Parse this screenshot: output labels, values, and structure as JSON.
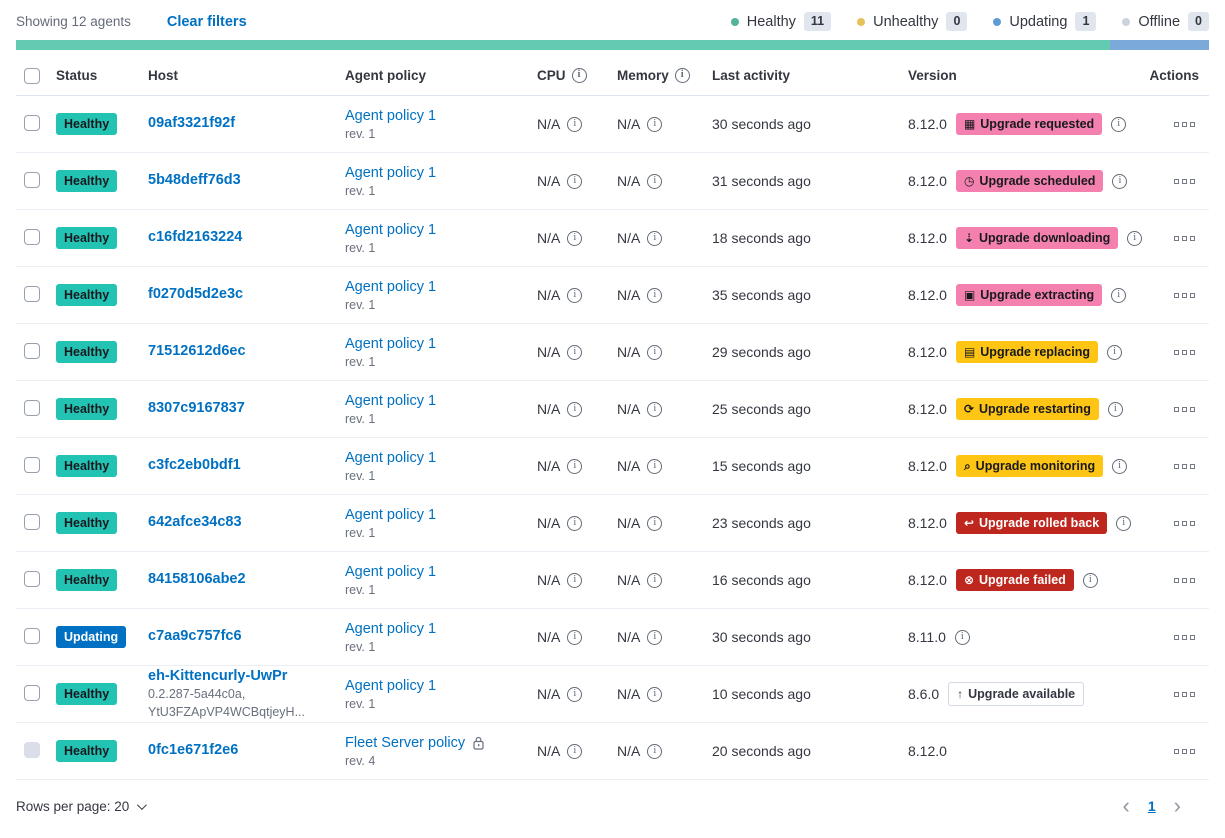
{
  "toolbar": {
    "showing_label": "Showing 12 agents",
    "clear_filters_label": "Clear filters",
    "legend": [
      {
        "label": "Healthy",
        "count": "11",
        "color": "#54b399"
      },
      {
        "label": "Unhealthy",
        "count": "0",
        "color": "#e7c25a"
      },
      {
        "label": "Updating",
        "count": "1",
        "color": "#5d9cd6"
      },
      {
        "label": "Offline",
        "count": "0",
        "color": "#ccd3de"
      }
    ]
  },
  "progress_bar": {
    "segments": [
      {
        "status": "healthy",
        "color": "#62cbb1",
        "fraction": 0.9167
      },
      {
        "status": "updating",
        "color": "#7aa9da",
        "fraction": 0.0833
      }
    ]
  },
  "colors": {
    "link": "#0071c2",
    "healthy_badge": "#23c3b4",
    "updating_badge": "#0071c2",
    "accent_badge": "#f480af",
    "warning_badge": "#fec514",
    "danger_badge": "#bd271e"
  },
  "table": {
    "columns": [
      {
        "label": "Status"
      },
      {
        "label": "Host"
      },
      {
        "label": "Agent policy"
      },
      {
        "label": "CPU",
        "info": true
      },
      {
        "label": "Memory",
        "info": true
      },
      {
        "label": "Last activity"
      },
      {
        "label": "Version"
      },
      {
        "label": "Actions"
      }
    ],
    "rows": [
      {
        "status": "Healthy",
        "status_type": "success",
        "host": "09af3321f92f",
        "host_sub": [],
        "policy": "Agent policy 1",
        "policy_rev": "rev. 1",
        "policy_locked": false,
        "cpu": "N/A",
        "memory": "N/A",
        "last_activity": "30 seconds ago",
        "version": "8.12.0",
        "upgrade": {
          "label": "Upgrade requested",
          "type": "accent",
          "icon": "calendar-icon"
        },
        "version_info": true,
        "checkbox_disabled": false
      },
      {
        "status": "Healthy",
        "status_type": "success",
        "host": "5b48deff76d3",
        "host_sub": [],
        "policy": "Agent policy 1",
        "policy_rev": "rev. 1",
        "policy_locked": false,
        "cpu": "N/A",
        "memory": "N/A",
        "last_activity": "31 seconds ago",
        "version": "8.12.0",
        "upgrade": {
          "label": "Upgrade scheduled",
          "type": "accent",
          "icon": "clock-icon"
        },
        "version_info": true,
        "checkbox_disabled": false
      },
      {
        "status": "Healthy",
        "status_type": "success",
        "host": "c16fd2163224",
        "host_sub": [],
        "policy": "Agent policy 1",
        "policy_rev": "rev. 1",
        "policy_locked": false,
        "cpu": "N/A",
        "memory": "N/A",
        "last_activity": "18 seconds ago",
        "version": "8.12.0",
        "upgrade": {
          "label": "Upgrade downloading",
          "type": "accent",
          "icon": "download-icon"
        },
        "version_info": true,
        "checkbox_disabled": false
      },
      {
        "status": "Healthy",
        "status_type": "success",
        "host": "f0270d5d2e3c",
        "host_sub": [],
        "policy": "Agent policy 1",
        "policy_rev": "rev. 1",
        "policy_locked": false,
        "cpu": "N/A",
        "memory": "N/A",
        "last_activity": "35 seconds ago",
        "version": "8.12.0",
        "upgrade": {
          "label": "Upgrade extracting",
          "type": "accent",
          "icon": "package-icon"
        },
        "version_info": true,
        "checkbox_disabled": false
      },
      {
        "status": "Healthy",
        "status_type": "success",
        "host": "71512612d6ec",
        "host_sub": [],
        "policy": "Agent policy 1",
        "policy_rev": "rev. 1",
        "policy_locked": false,
        "cpu": "N/A",
        "memory": "N/A",
        "last_activity": "29 seconds ago",
        "version": "8.12.0",
        "upgrade": {
          "label": "Upgrade replacing",
          "type": "warning",
          "icon": "document-icon"
        },
        "version_info": true,
        "checkbox_disabled": false
      },
      {
        "status": "Healthy",
        "status_type": "success",
        "host": "8307c9167837",
        "host_sub": [],
        "policy": "Agent policy 1",
        "policy_rev": "rev. 1",
        "policy_locked": false,
        "cpu": "N/A",
        "memory": "N/A",
        "last_activity": "25 seconds ago",
        "version": "8.12.0",
        "upgrade": {
          "label": "Upgrade restarting",
          "type": "warning",
          "icon": "refresh-icon"
        },
        "version_info": true,
        "checkbox_disabled": false
      },
      {
        "status": "Healthy",
        "status_type": "success",
        "host": "c3fc2eb0bdf1",
        "host_sub": [],
        "policy": "Agent policy 1",
        "policy_rev": "rev. 1",
        "policy_locked": false,
        "cpu": "N/A",
        "memory": "N/A",
        "last_activity": "15 seconds ago",
        "version": "8.12.0",
        "upgrade": {
          "label": "Upgrade monitoring",
          "type": "warning",
          "icon": "inspect-icon"
        },
        "version_info": true,
        "checkbox_disabled": false
      },
      {
        "status": "Healthy",
        "status_type": "success",
        "host": "642afce34c83",
        "host_sub": [],
        "policy": "Agent policy 1",
        "policy_rev": "rev. 1",
        "policy_locked": false,
        "cpu": "N/A",
        "memory": "N/A",
        "last_activity": "23 seconds ago",
        "version": "8.12.0",
        "upgrade": {
          "label": "Upgrade rolled back",
          "type": "danger",
          "icon": "return-icon"
        },
        "version_info": true,
        "checkbox_disabled": false
      },
      {
        "status": "Healthy",
        "status_type": "success",
        "host": "84158106abe2",
        "host_sub": [],
        "policy": "Agent policy 1",
        "policy_rev": "rev. 1",
        "policy_locked": false,
        "cpu": "N/A",
        "memory": "N/A",
        "last_activity": "16 seconds ago",
        "version": "8.12.0",
        "upgrade": {
          "label": "Upgrade failed",
          "type": "danger",
          "icon": "error-icon"
        },
        "version_info": true,
        "checkbox_disabled": false
      },
      {
        "status": "Updating",
        "status_type": "primary",
        "host": "c7aa9c757fc6",
        "host_sub": [],
        "policy": "Agent policy 1",
        "policy_rev": "rev. 1",
        "policy_locked": false,
        "cpu": "N/A",
        "memory": "N/A",
        "last_activity": "30 seconds ago",
        "version": "8.11.0",
        "upgrade": null,
        "version_info": true,
        "checkbox_disabled": false
      },
      {
        "status": "Healthy",
        "status_type": "success",
        "host": "eh-Kittencurly-UwPr",
        "host_sub": [
          "0.2.287-5a44c0a,",
          "YtU3FZApVP4WCBqtjeyH..."
        ],
        "policy": "Agent policy 1",
        "policy_rev": "rev. 1",
        "policy_locked": false,
        "cpu": "N/A",
        "memory": "N/A",
        "last_activity": "10 seconds ago",
        "version": "8.6.0",
        "upgrade": {
          "label": "Upgrade available",
          "type": "hollow",
          "icon": "arrow-up-icon"
        },
        "version_info": false,
        "checkbox_disabled": false
      },
      {
        "status": "Healthy",
        "status_type": "success",
        "host": "0fc1e671f2e6",
        "host_sub": [],
        "policy": "Fleet Server policy",
        "policy_rev": "rev. 4",
        "policy_locked": true,
        "cpu": "N/A",
        "memory": "N/A",
        "last_activity": "20 seconds ago",
        "version": "8.12.0",
        "upgrade": null,
        "version_info": false,
        "checkbox_disabled": true
      }
    ]
  },
  "footer": {
    "rows_per_page_label": "Rows per page: 20",
    "page": "1"
  }
}
